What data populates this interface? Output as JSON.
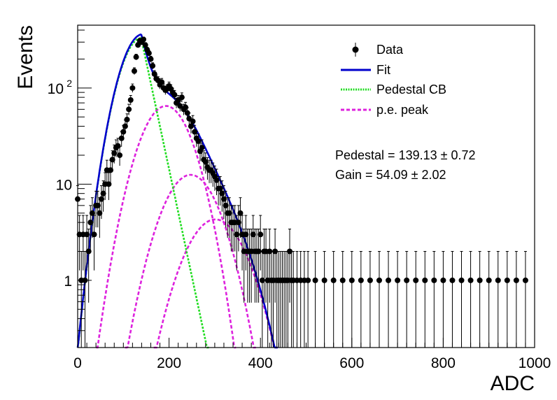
{
  "chart_data": {
    "type": "scatter",
    "title": "",
    "xlabel": "ADC",
    "ylabel": "Events",
    "xlim": [
      0,
      1000
    ],
    "ylim": [
      0.2,
      450
    ],
    "yscale": "log",
    "grid": false,
    "legend_position": "top-right",
    "x_ticks": [
      {
        "value": 0,
        "label": "0"
      },
      {
        "value": 200,
        "label": "200"
      },
      {
        "value": 400,
        "label": "400"
      },
      {
        "value": 600,
        "label": "600"
      },
      {
        "value": 800,
        "label": "800"
      },
      {
        "value": 1000,
        "label": "1000"
      }
    ],
    "y_ticks": [
      {
        "value": 1,
        "label": "1",
        "sup": ""
      },
      {
        "value": 10,
        "label": "10",
        "sup": ""
      },
      {
        "value": 100,
        "label": "10",
        "sup": "2"
      }
    ],
    "legend": [
      {
        "label": "Data",
        "style": "marker",
        "color": "#000000"
      },
      {
        "label": "Fit",
        "style": "solid",
        "color": "#0000cc"
      },
      {
        "label": "Pedestal CB",
        "style": "dotted",
        "color": "#22dd22"
      },
      {
        "label": "p.e. peak",
        "style": "dashed",
        "color": "#dd22dd"
      }
    ],
    "annotations": [
      "Pedestal = 139.13 ± 0.72",
      "Gain = 54.09 ± 2.02"
    ],
    "fit_params": {
      "pedestal": 139.13,
      "pedestal_err": 0.72,
      "gain": 54.09,
      "gain_err": 2.02,
      "pedestal_amplitude": 330,
      "sigma_left": 36,
      "tail_slope": 0.0515,
      "pe_peaks": [
        {
          "mean": 193.2,
          "sigma": 44,
          "amplitude": 65
        },
        {
          "mean": 247.3,
          "sigma": 48,
          "amplitude": 12.5
        },
        {
          "mean": 301.4,
          "sigma": 52,
          "amplitude": 4.3
        }
      ]
    },
    "series": [
      {
        "name": "Data",
        "points": [
          [
            0,
            7
          ],
          [
            4,
            3
          ],
          [
            8,
            1
          ],
          [
            12,
            3
          ],
          [
            16,
            1
          ],
          [
            20,
            3
          ],
          [
            24,
            2
          ],
          [
            28,
            4
          ],
          [
            32,
            5
          ],
          [
            36,
            3
          ],
          [
            40,
            6
          ],
          [
            44,
            6
          ],
          [
            48,
            5
          ],
          [
            52,
            7
          ],
          [
            56,
            8
          ],
          [
            60,
            10
          ],
          [
            64,
            14
          ],
          [
            68,
            10
          ],
          [
            72,
            14
          ],
          [
            76,
            18
          ],
          [
            80,
            21
          ],
          [
            84,
            24
          ],
          [
            88,
            25
          ],
          [
            92,
            20
          ],
          [
            96,
            30
          ],
          [
            100,
            35
          ],
          [
            104,
            40
          ],
          [
            108,
            47
          ],
          [
            112,
            60
          ],
          [
            116,
            75
          ],
          [
            120,
            100
          ],
          [
            124,
            150
          ],
          [
            128,
            210
          ],
          [
            132,
            280
          ],
          [
            136,
            310
          ],
          [
            140,
            300
          ],
          [
            144,
            320
          ],
          [
            148,
            280
          ],
          [
            152,
            250
          ],
          [
            156,
            230
          ],
          [
            160,
            200
          ],
          [
            164,
            170
          ],
          [
            168,
            140
          ],
          [
            172,
            125
          ],
          [
            176,
            120
          ],
          [
            180,
            108
          ],
          [
            184,
            115
          ],
          [
            188,
            100
          ],
          [
            192,
            95
          ],
          [
            196,
            98
          ],
          [
            200,
            105
          ],
          [
            204,
            98
          ],
          [
            208,
            90
          ],
          [
            212,
            85
          ],
          [
            216,
            70
          ],
          [
            220,
            75
          ],
          [
            224,
            65
          ],
          [
            228,
            80
          ],
          [
            232,
            60
          ],
          [
            236,
            63
          ],
          [
            240,
            55
          ],
          [
            244,
            48
          ],
          [
            248,
            40
          ],
          [
            252,
            45
          ],
          [
            256,
            35
          ],
          [
            260,
            30
          ],
          [
            264,
            28
          ],
          [
            268,
            22
          ],
          [
            272,
            24
          ],
          [
            276,
            18
          ],
          [
            280,
            17
          ],
          [
            284,
            15
          ],
          [
            288,
            14
          ],
          [
            292,
            14
          ],
          [
            296,
            13
          ],
          [
            300,
            12
          ],
          [
            304,
            11
          ],
          [
            308,
            9
          ],
          [
            312,
            9
          ],
          [
            316,
            8
          ],
          [
            320,
            7
          ],
          [
            324,
            6
          ],
          [
            328,
            5
          ],
          [
            332,
            5
          ],
          [
            336,
            4
          ],
          [
            340,
            4
          ],
          [
            344,
            4
          ],
          [
            348,
            3
          ],
          [
            352,
            4
          ],
          [
            356,
            5
          ],
          [
            360,
            3
          ],
          [
            364,
            2
          ],
          [
            368,
            3
          ],
          [
            372,
            2
          ],
          [
            376,
            2
          ],
          [
            380,
            2
          ],
          [
            384,
            3
          ],
          [
            388,
            2
          ],
          [
            392,
            2
          ],
          [
            396,
            2
          ],
          [
            400,
            3
          ],
          [
            404,
            1
          ],
          [
            408,
            2
          ],
          [
            412,
            2
          ],
          [
            416,
            1
          ],
          [
            420,
            2
          ],
          [
            424,
            1
          ],
          [
            428,
            1
          ],
          [
            432,
            2
          ],
          [
            436,
            1
          ],
          [
            440,
            1
          ],
          [
            444,
            1
          ],
          [
            448,
            1
          ],
          [
            452,
            1
          ],
          [
            456,
            1
          ],
          [
            460,
            1
          ],
          [
            464,
            2
          ],
          [
            468,
            1
          ],
          [
            472,
            1
          ],
          [
            480,
            1
          ],
          [
            488,
            1
          ],
          [
            496,
            1
          ],
          [
            504,
            1
          ],
          [
            520,
            1
          ],
          [
            540,
            1
          ],
          [
            560,
            1
          ],
          [
            580,
            1
          ],
          [
            600,
            1
          ],
          [
            620,
            1
          ],
          [
            640,
            1
          ],
          [
            660,
            1
          ],
          [
            680,
            1
          ],
          [
            700,
            1
          ],
          [
            720,
            1
          ],
          [
            740,
            1
          ],
          [
            760,
            1
          ],
          [
            780,
            1
          ],
          [
            800,
            1
          ],
          [
            820,
            1
          ],
          [
            840,
            1
          ],
          [
            860,
            1
          ],
          [
            880,
            1
          ],
          [
            900,
            1
          ],
          [
            920,
            1
          ],
          [
            940,
            1
          ],
          [
            960,
            1
          ],
          [
            980,
            1
          ]
        ]
      }
    ]
  }
}
